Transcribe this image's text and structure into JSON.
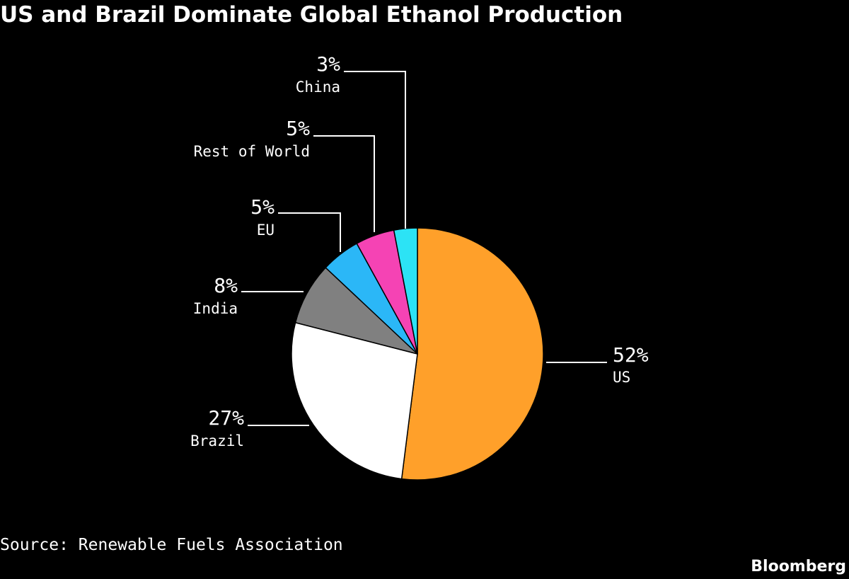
{
  "chart_data": {
    "type": "pie",
    "title": "US and Brazil Dominate Global Ethanol Production",
    "slices": [
      {
        "label": "US",
        "value": 52,
        "value_label": "52%",
        "color": "#FFA02A"
      },
      {
        "label": "Brazil",
        "value": 27,
        "value_label": "27%",
        "color": "#FFFFFF"
      },
      {
        "label": "India",
        "value": 8,
        "value_label": "8%",
        "color": "#808080"
      },
      {
        "label": "EU",
        "value": 5,
        "value_label": "5%",
        "color": "#2BB7F7"
      },
      {
        "label": "Rest of World",
        "value": 5,
        "value_label": "5%",
        "color": "#F543B4"
      },
      {
        "label": "China",
        "value": 3,
        "value_label": "3%",
        "color": "#2CE3F5"
      }
    ],
    "legend": "none",
    "source": "Source: Renewable Fuels Association"
  },
  "brand": "Bloomberg",
  "colors": {
    "background": "#000000",
    "text": "#FFFFFF"
  }
}
